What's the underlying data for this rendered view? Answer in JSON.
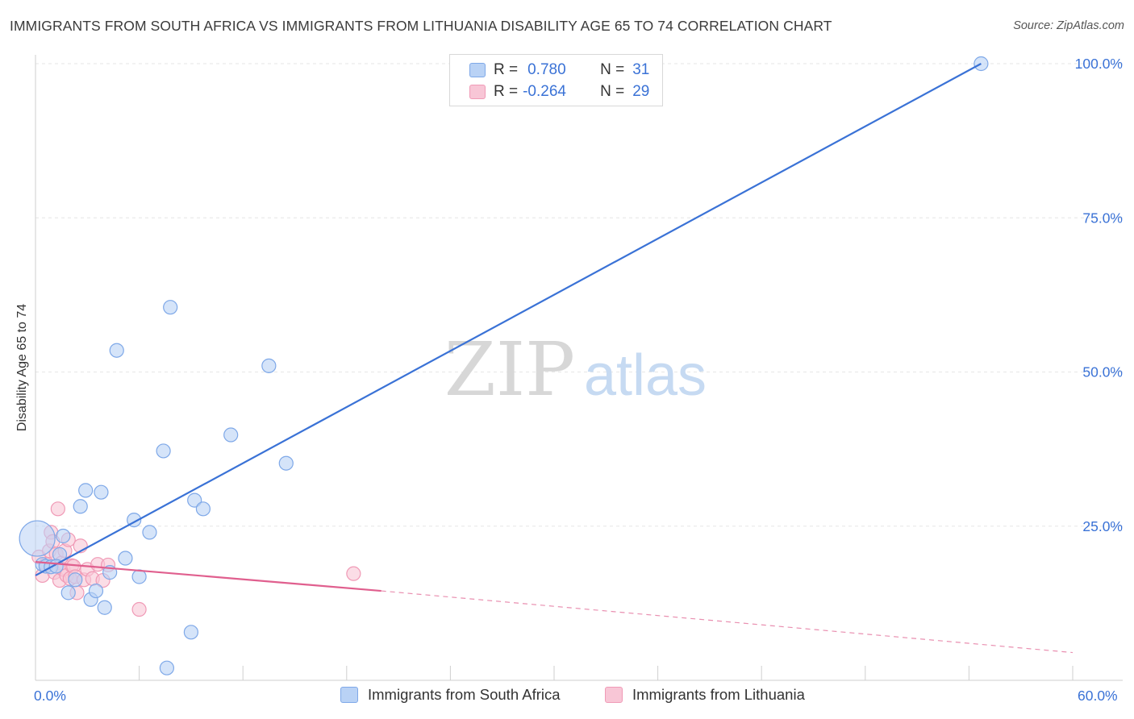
{
  "title": "IMMIGRANTS FROM SOUTH AFRICA VS IMMIGRANTS FROM LITHUANIA DISABILITY AGE 65 TO 74 CORRELATION CHART",
  "source": "Source: ZipAtlas.com",
  "watermark": {
    "zip": "ZIP",
    "atlas": "atlas"
  },
  "colors": {
    "blue": "#3a72d6",
    "blue_fill": "#b9d2f5",
    "blue_stroke": "#7ea8e8",
    "pink": "#e05f8e",
    "pink_fill": "#f8c6d6",
    "pink_stroke": "#f09ab6",
    "grid": "#e6e6e6"
  },
  "legend": {
    "rows": [
      {
        "r_label": "R =",
        "r_value": "0.780",
        "n_label": "N =",
        "n_value": "31"
      },
      {
        "r_label": "R =",
        "r_value": "-0.264",
        "n_label": "N =",
        "n_value": "29"
      }
    ]
  },
  "chart_data": {
    "type": "scatter",
    "title": "IMMIGRANTS FROM SOUTH AFRICA VS IMMIGRANTS FROM LITHUANIA DISABILITY AGE 65 TO 74 CORRELATION CHART",
    "xlabel": "",
    "ylabel": "Disability Age 65 to 74",
    "xlim": [
      0,
      60
    ],
    "ylim": [
      0,
      103
    ],
    "x_tick_labels": [
      "0.0%",
      "60.0%"
    ],
    "y_ticks": [
      25,
      50,
      75,
      100
    ],
    "y_tick_labels": [
      "25.0%",
      "50.0%",
      "75.0%",
      "100.0%"
    ],
    "series": [
      {
        "name": "Immigrants from South Africa",
        "color": "blue",
        "points": [
          [
            0.1,
            23.0
          ],
          [
            0.4,
            18.8
          ],
          [
            0.6,
            18.5
          ],
          [
            0.9,
            18.4
          ],
          [
            1.4,
            20.4
          ],
          [
            1.6,
            23.4
          ],
          [
            1.9,
            14.2
          ],
          [
            2.3,
            16.3
          ],
          [
            2.6,
            28.2
          ],
          [
            2.9,
            30.8
          ],
          [
            3.2,
            13.1
          ],
          [
            3.5,
            14.5
          ],
          [
            3.8,
            30.5
          ],
          [
            4.0,
            11.8
          ],
          [
            4.3,
            17.5
          ],
          [
            4.7,
            53.5
          ],
          [
            5.2,
            19.8
          ],
          [
            5.7,
            26.0
          ],
          [
            6.0,
            16.8
          ],
          [
            6.6,
            24.0
          ],
          [
            7.4,
            37.2
          ],
          [
            7.6,
            2.0
          ],
          [
            7.8,
            60.5
          ],
          [
            9.0,
            7.8
          ],
          [
            9.2,
            29.2
          ],
          [
            9.7,
            27.8
          ],
          [
            11.3,
            39.8
          ],
          [
            13.5,
            51.0
          ],
          [
            14.5,
            35.2
          ],
          [
            54.7,
            100.0
          ],
          [
            1.2,
            18.5
          ]
        ],
        "fit_line": {
          "x": [
            0.0,
            54.7
          ],
          "y": [
            17.0,
            100.0
          ],
          "style": "solid"
        }
      },
      {
        "name": "Immigrants from Lithuania",
        "color": "pink",
        "points": [
          [
            0.2,
            20.0
          ],
          [
            0.4,
            17.0
          ],
          [
            0.6,
            18.8
          ],
          [
            0.8,
            21.0
          ],
          [
            0.9,
            24.0
          ],
          [
            1.0,
            22.5
          ],
          [
            1.1,
            17.5
          ],
          [
            1.2,
            20.5
          ],
          [
            1.3,
            27.8
          ],
          [
            1.4,
            16.2
          ],
          [
            1.5,
            19.0
          ],
          [
            1.6,
            18.0
          ],
          [
            1.7,
            21.0
          ],
          [
            1.8,
            17.0
          ],
          [
            1.9,
            22.8
          ],
          [
            2.0,
            16.5
          ],
          [
            2.1,
            18.6
          ],
          [
            2.2,
            18.5
          ],
          [
            2.3,
            16.8
          ],
          [
            2.4,
            14.2
          ],
          [
            2.6,
            21.8
          ],
          [
            2.8,
            16.3
          ],
          [
            3.0,
            18.0
          ],
          [
            3.3,
            16.5
          ],
          [
            3.6,
            18.8
          ],
          [
            3.9,
            16.2
          ],
          [
            4.2,
            18.7
          ],
          [
            6.0,
            11.5
          ],
          [
            18.4,
            17.3
          ]
        ],
        "fit_line": {
          "x": [
            0.0,
            20.0
          ],
          "y": [
            19.2,
            14.5
          ],
          "style": "solid"
        },
        "fit_line_extension": {
          "x": [
            20.0,
            60.0
          ],
          "y": [
            14.5,
            4.5
          ],
          "style": "dashed"
        }
      }
    ],
    "legend": [
      "Immigrants from South Africa",
      "Immigrants from Lithuania"
    ]
  }
}
